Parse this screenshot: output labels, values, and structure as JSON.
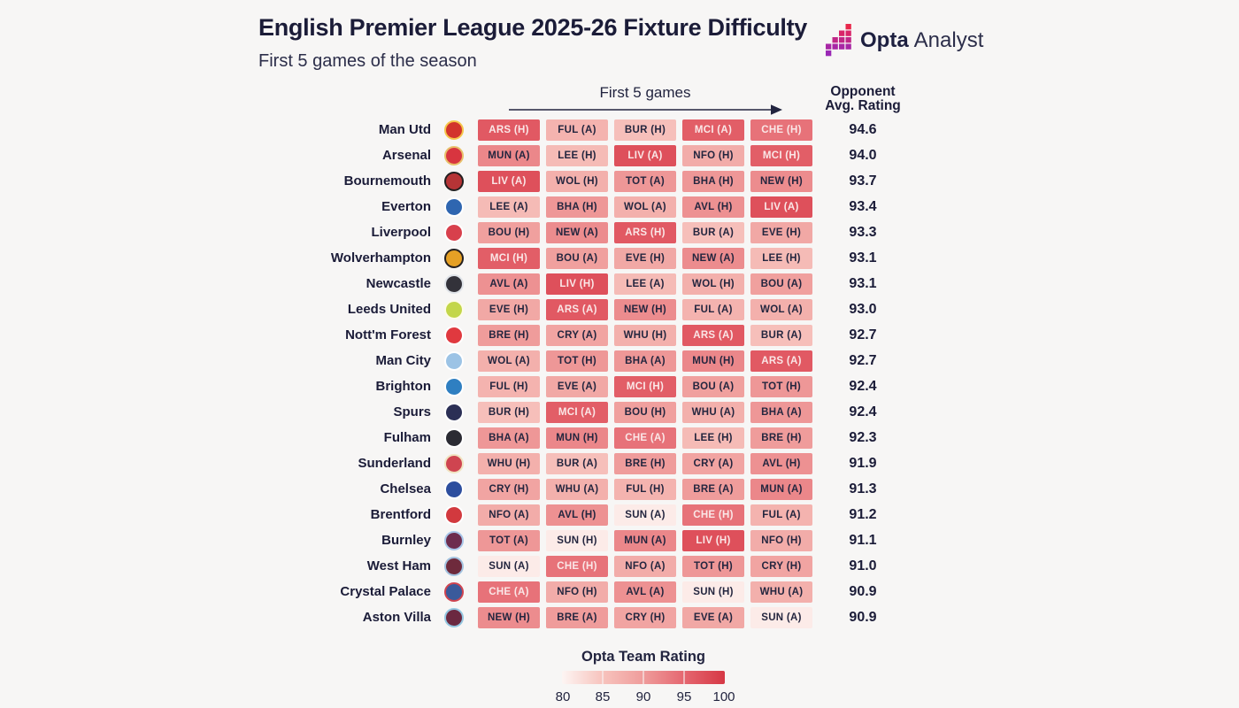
{
  "title": "English Premier League 2025-26 Fixture Difficulty",
  "subtitle": "First 5 games of the season",
  "logo": {
    "brand_bold": "Opta",
    "brand_regular": "Analyst"
  },
  "header": {
    "games_label": "First 5 games",
    "rating_line1": "Opponent",
    "rating_line2": "Avg. Rating"
  },
  "legend": {
    "title": "Opta Team Rating",
    "ticks": [
      "80",
      "85",
      "90",
      "95",
      "100"
    ]
  },
  "colors": {
    "background": "#f7f6f5",
    "ink": "#1b1c38",
    "cell_text_dark": "#24263f",
    "cell_text_light": "#fae7e7",
    "arrow": "#22243f",
    "white_text_threshold": 93.5,
    "scale": [
      {
        "v": 80,
        "c": "#fdf5f3"
      },
      {
        "v": 85,
        "c": "#f7c3bd"
      },
      {
        "v": 90,
        "c": "#ef9c9b"
      },
      {
        "v": 95,
        "c": "#e56770"
      },
      {
        "v": 100,
        "c": "#d63845"
      }
    ],
    "logo_rows": [
      "#e8274b",
      "#d9256a",
      "#c02687",
      "#a827a5",
      "#9a28b5"
    ]
  },
  "opponent_ratings_for_color": {
    "LIV": 97.5,
    "ARS": 96.5,
    "MCI": 96.0,
    "CHE": 94.0,
    "MUN": 92.0,
    "NEW": 91.5,
    "AVL": 91.0,
    "BHA": 90.5,
    "TOT": 90.5,
    "BRE": 90.0,
    "BOU": 89.5,
    "CRY": 89.0,
    "EVE": 88.5,
    "NFO": 88.0,
    "WHU": 87.5,
    "WOL": 87.5,
    "FUL": 87.0,
    "LEE": 86.0,
    "BUR": 85.5,
    "SUN": 81.0
  },
  "crest_colors": {
    "Man Utd": [
      "#d2342c",
      "#f5c64b"
    ],
    "Arsenal": [
      "#d8353f",
      "#e8c06a"
    ],
    "Bournemouth": [
      "#b63436",
      "#231f20"
    ],
    "Everton": [
      "#2f66b0",
      "#ffffff"
    ],
    "Liverpool": [
      "#d8404c",
      "#ffffff"
    ],
    "Wolverhampton": [
      "#e5a025",
      "#231f20"
    ],
    "Newcastle": [
      "#33323a",
      "#dfe3e8"
    ],
    "Leeds United": [
      "#c3d64a",
      "#fdfbe8"
    ],
    "Nott'm Forest": [
      "#e0393f",
      "#ffffff"
    ],
    "Man City": [
      "#9cc3e5",
      "#ffffff"
    ],
    "Brighton": [
      "#2f7fc1",
      "#ffffff"
    ],
    "Spurs": [
      "#2b2f55",
      "#ffffff"
    ],
    "Fulham": [
      "#2b2b33",
      "#ffffff"
    ],
    "Sunderland": [
      "#cf4450",
      "#f0e3c0"
    ],
    "Chelsea": [
      "#2d4e9e",
      "#ffffff"
    ],
    "Brentford": [
      "#d2393e",
      "#ffffff"
    ],
    "Burnley": [
      "#6d2c4e",
      "#a8c6e8"
    ],
    "West Ham": [
      "#6e2a3c",
      "#a3c3e0"
    ],
    "Crystal Palace": [
      "#3a5a9b",
      "#cf4450"
    ],
    "Aston Villa": [
      "#6b2840",
      "#93c6e0"
    ]
  },
  "chart_data": {
    "type": "heatmap",
    "title": "English Premier League 2025-26 Fixture Difficulty",
    "subtitle": "First 5 games of the season",
    "x_label": "First 5 games",
    "columns": [
      "Game 1",
      "Game 2",
      "Game 3",
      "Game 4",
      "Game 5"
    ],
    "value_label": "Opta Team Rating",
    "value_range": [
      80,
      100
    ],
    "legend_position": "bottom",
    "rows": [
      {
        "team": "Man Utd",
        "opponent_avg_rating": 94.6,
        "fixtures": [
          "ARS (H)",
          "FUL (A)",
          "BUR (H)",
          "MCI (A)",
          "CHE (H)"
        ]
      },
      {
        "team": "Arsenal",
        "opponent_avg_rating": 94.0,
        "fixtures": [
          "MUN (A)",
          "LEE (H)",
          "LIV (A)",
          "NFO (H)",
          "MCI (H)"
        ]
      },
      {
        "team": "Bournemouth",
        "opponent_avg_rating": 93.7,
        "fixtures": [
          "LIV (A)",
          "WOL (H)",
          "TOT (A)",
          "BHA (H)",
          "NEW (H)"
        ]
      },
      {
        "team": "Everton",
        "opponent_avg_rating": 93.4,
        "fixtures": [
          "LEE (A)",
          "BHA (H)",
          "WOL (A)",
          "AVL (H)",
          "LIV (A)"
        ]
      },
      {
        "team": "Liverpool",
        "opponent_avg_rating": 93.3,
        "fixtures": [
          "BOU (H)",
          "NEW (A)",
          "ARS (H)",
          "BUR (A)",
          "EVE (H)"
        ]
      },
      {
        "team": "Wolverhampton",
        "opponent_avg_rating": 93.1,
        "fixtures": [
          "MCI (H)",
          "BOU (A)",
          "EVE (H)",
          "NEW (A)",
          "LEE (H)"
        ]
      },
      {
        "team": "Newcastle",
        "opponent_avg_rating": 93.1,
        "fixtures": [
          "AVL (A)",
          "LIV (H)",
          "LEE (A)",
          "WOL (H)",
          "BOU (A)"
        ]
      },
      {
        "team": "Leeds United",
        "opponent_avg_rating": 93.0,
        "fixtures": [
          "EVE (H)",
          "ARS (A)",
          "NEW (H)",
          "FUL (A)",
          "WOL (A)"
        ]
      },
      {
        "team": "Nott'm Forest",
        "opponent_avg_rating": 92.7,
        "fixtures": [
          "BRE (H)",
          "CRY (A)",
          "WHU (H)",
          "ARS (A)",
          "BUR (A)"
        ]
      },
      {
        "team": "Man City",
        "opponent_avg_rating": 92.7,
        "fixtures": [
          "WOL (A)",
          "TOT (H)",
          "BHA (A)",
          "MUN (H)",
          "ARS (A)"
        ]
      },
      {
        "team": "Brighton",
        "opponent_avg_rating": 92.4,
        "fixtures": [
          "FUL (H)",
          "EVE (A)",
          "MCI (H)",
          "BOU (A)",
          "TOT (H)"
        ]
      },
      {
        "team": "Spurs",
        "opponent_avg_rating": 92.4,
        "fixtures": [
          "BUR (H)",
          "MCI (A)",
          "BOU (H)",
          "WHU (A)",
          "BHA (A)"
        ]
      },
      {
        "team": "Fulham",
        "opponent_avg_rating": 92.3,
        "fixtures": [
          "BHA (A)",
          "MUN (H)",
          "CHE (A)",
          "LEE (H)",
          "BRE (H)"
        ]
      },
      {
        "team": "Sunderland",
        "opponent_avg_rating": 91.9,
        "fixtures": [
          "WHU (H)",
          "BUR (A)",
          "BRE (H)",
          "CRY (A)",
          "AVL (H)"
        ]
      },
      {
        "team": "Chelsea",
        "opponent_avg_rating": 91.3,
        "fixtures": [
          "CRY (H)",
          "WHU (A)",
          "FUL (H)",
          "BRE (A)",
          "MUN (A)"
        ]
      },
      {
        "team": "Brentford",
        "opponent_avg_rating": 91.2,
        "fixtures": [
          "NFO (A)",
          "AVL (H)",
          "SUN (A)",
          "CHE (H)",
          "FUL (A)"
        ]
      },
      {
        "team": "Burnley",
        "opponent_avg_rating": 91.1,
        "fixtures": [
          "TOT (A)",
          "SUN (H)",
          "MUN (A)",
          "LIV (H)",
          "NFO (H)"
        ]
      },
      {
        "team": "West Ham",
        "opponent_avg_rating": 91.0,
        "fixtures": [
          "SUN (A)",
          "CHE (H)",
          "NFO (A)",
          "TOT (H)",
          "CRY (H)"
        ]
      },
      {
        "team": "Crystal Palace",
        "opponent_avg_rating": 90.9,
        "fixtures": [
          "CHE (A)",
          "NFO (H)",
          "AVL (A)",
          "SUN (H)",
          "WHU (A)"
        ]
      },
      {
        "team": "Aston Villa",
        "opponent_avg_rating": 90.9,
        "fixtures": [
          "NEW (H)",
          "BRE (A)",
          "CRY (H)",
          "EVE (A)",
          "SUN (A)"
        ]
      }
    ]
  }
}
